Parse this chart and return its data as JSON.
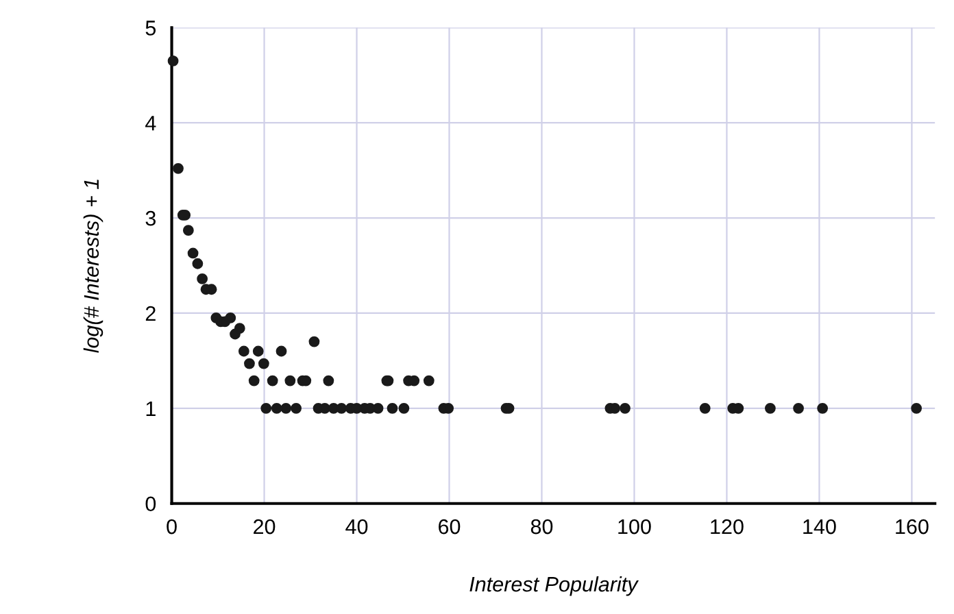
{
  "chart_data": {
    "type": "scatter",
    "xlabel": "Interest Popularity",
    "ylabel": "log(# Interests) + 1",
    "x": [
      0.3,
      1.4,
      2.4,
      2.9,
      3.6,
      4.6,
      5.6,
      6.6,
      7.4,
      8.6,
      9.6,
      10.6,
      11.5,
      12.7,
      13.7,
      14.7,
      15.6,
      16.8,
      17.8,
      18.7,
      19.9,
      21.8,
      23.7,
      25.6,
      28.3,
      29.0,
      30.8,
      33.9,
      46.8,
      46.5,
      51.2,
      52.4,
      55.6,
      20.4,
      22.7,
      24.7,
      26.9,
      31.7,
      33.1,
      35,
      36.7,
      38.7,
      40,
      41.7,
      42.9,
      44.6,
      47.7,
      50.2,
      58.8,
      59.8,
      72.3,
      72.9,
      94.8,
      95.8,
      98,
      115.3,
      121.3,
      122.5,
      129.4,
      135.5,
      140.7,
      161
    ],
    "values": [
      4.65,
      3.52,
      3.03,
      3.03,
      2.87,
      2.63,
      2.52,
      2.36,
      2.25,
      2.25,
      1.95,
      1.91,
      1.91,
      1.95,
      1.78,
      1.84,
      1.6,
      1.47,
      1.29,
      1.6,
      1.47,
      1.29,
      1.6,
      1.29,
      1.29,
      1.29,
      1.7,
      1.29,
      1.29,
      1.29,
      1.29,
      1.29,
      1.29,
      1,
      1,
      1,
      1,
      1,
      1,
      1,
      1,
      1,
      1,
      1,
      1,
      1,
      1,
      1,
      1,
      1,
      1,
      1,
      1,
      1,
      1,
      1,
      1,
      1,
      1,
      1,
      1,
      1
    ],
    "color": "#1a1a1a",
    "marker": "circle",
    "xlim": [
      0,
      165
    ],
    "ylim": [
      0,
      5
    ],
    "xticks": [
      0,
      20,
      40,
      60,
      80,
      100,
      120,
      140,
      160
    ],
    "yticks": [
      0,
      1,
      2,
      3,
      4,
      5
    ],
    "grid": true
  }
}
